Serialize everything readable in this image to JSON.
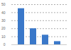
{
  "chart_data": {
    "type": "bar",
    "categories": [
      null,
      null,
      null,
      null
    ],
    "values": [
      45,
      20,
      12,
      4
    ],
    "color": "#3a78c9",
    "ylim": [
      0,
      50
    ],
    "yticks": [
      0,
      10,
      20,
      30,
      40,
      50
    ],
    "grid": true,
    "tick_labels": "y"
  }
}
